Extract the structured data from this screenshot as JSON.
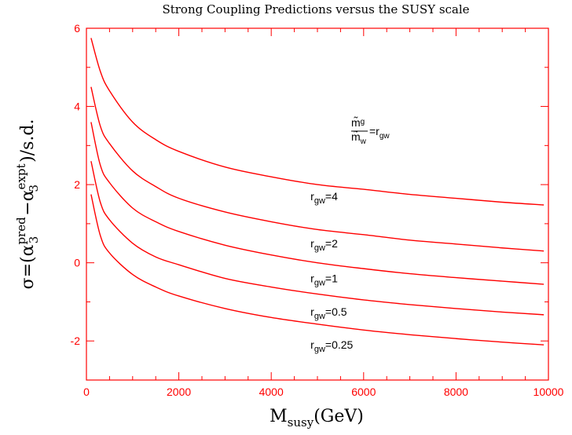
{
  "title": "Strong Coupling Predictions versus the SUSY scale",
  "ylabel_parts": {
    "prefix": "σ=(α",
    "sub1": "3",
    "sup1": "pred",
    "mid": "−α",
    "sub2": "3",
    "sup2": "expt",
    "suffix": ")/s.d."
  },
  "xlabel_parts": {
    "main": "M",
    "sub": "susy",
    "tail": "(GeV)"
  },
  "ratio_annotation": {
    "top": "m̃",
    "top_sub": "g",
    "bottom": "m̃",
    "bottom_sub": "w",
    "eq": "=r",
    "eq_sub": "gw"
  },
  "colors": {
    "axis": "#ff0000",
    "curve": "#ff0000",
    "text": "#000000"
  },
  "chart_data": {
    "type": "line",
    "title": "Strong Coupling Predictions versus the SUSY scale",
    "xlabel": "M_susy(GeV)",
    "ylabel": "σ=(α3^pred − α3^expt)/s.d.",
    "xlim": [
      0,
      10000
    ],
    "ylim": [
      -3,
      6
    ],
    "x_ticks": [
      0,
      2000,
      4000,
      6000,
      8000,
      10000
    ],
    "y_ticks": [
      -2,
      0,
      2,
      4,
      6
    ],
    "x_tick_labels": [
      "0",
      "2000",
      "4000",
      "6000",
      "8000",
      "10000"
    ],
    "y_tick_labels": [
      "-2",
      "0",
      "2",
      "4",
      "6"
    ],
    "grid": false,
    "series": [
      {
        "name": "r_gw=4",
        "label_main": "r",
        "label_sub": "gw",
        "label_val": "=4",
        "label_at": [
          4850,
          1.7
        ],
        "x": [
          100,
          300,
          500,
          1000,
          1500,
          2000,
          3000,
          4000,
          5000,
          6000,
          7000,
          8000,
          9000,
          9900
        ],
        "y": [
          5.75,
          4.9,
          4.4,
          3.6,
          3.15,
          2.85,
          2.45,
          2.2,
          2.0,
          1.88,
          1.75,
          1.65,
          1.55,
          1.48
        ]
      },
      {
        "name": "r_gw=2",
        "label_main": "r",
        "label_sub": "gw",
        "label_val": "=2",
        "label_at": [
          4850,
          0.5
        ],
        "x": [
          100,
          300,
          500,
          1000,
          1500,
          2000,
          3000,
          4000,
          5000,
          6000,
          7000,
          8000,
          9000,
          9900
        ],
        "y": [
          4.5,
          3.5,
          3.05,
          2.35,
          1.95,
          1.65,
          1.3,
          1.05,
          0.85,
          0.72,
          0.58,
          0.48,
          0.38,
          0.3
        ]
      },
      {
        "name": "r_gw=1",
        "label_main": "r",
        "label_sub": "gw",
        "label_val": "=1",
        "label_at": [
          4850,
          -0.4
        ],
        "x": [
          100,
          300,
          500,
          1000,
          1500,
          2000,
          3000,
          4000,
          5000,
          6000,
          7000,
          8000,
          9000,
          9900
        ],
        "y": [
          3.6,
          2.5,
          2.05,
          1.4,
          1.05,
          0.8,
          0.45,
          0.2,
          0.0,
          -0.15,
          -0.28,
          -0.38,
          -0.47,
          -0.55
        ]
      },
      {
        "name": "r_gw=0.5",
        "label_main": "r",
        "label_sub": "gw",
        "label_val": "=0.5",
        "label_at": [
          4850,
          -1.25
        ],
        "x": [
          100,
          300,
          500,
          1000,
          1500,
          2000,
          3000,
          4000,
          5000,
          6000,
          7000,
          8000,
          9000,
          9900
        ],
        "y": [
          2.6,
          1.55,
          1.1,
          0.5,
          0.15,
          -0.05,
          -0.4,
          -0.62,
          -0.8,
          -0.95,
          -1.07,
          -1.17,
          -1.26,
          -1.33
        ]
      },
      {
        "name": "r_gw=0.25",
        "label_main": "r",
        "label_sub": "gw",
        "label_val": "=0.25",
        "label_at": [
          4850,
          -2.1
        ],
        "x": [
          100,
          300,
          500,
          1000,
          1500,
          2000,
          3000,
          4000,
          5000,
          6000,
          7000,
          8000,
          9000,
          9900
        ],
        "y": [
          1.75,
          0.7,
          0.25,
          -0.3,
          -0.62,
          -0.85,
          -1.17,
          -1.4,
          -1.57,
          -1.72,
          -1.84,
          -1.94,
          -2.03,
          -2.1
        ]
      }
    ]
  }
}
